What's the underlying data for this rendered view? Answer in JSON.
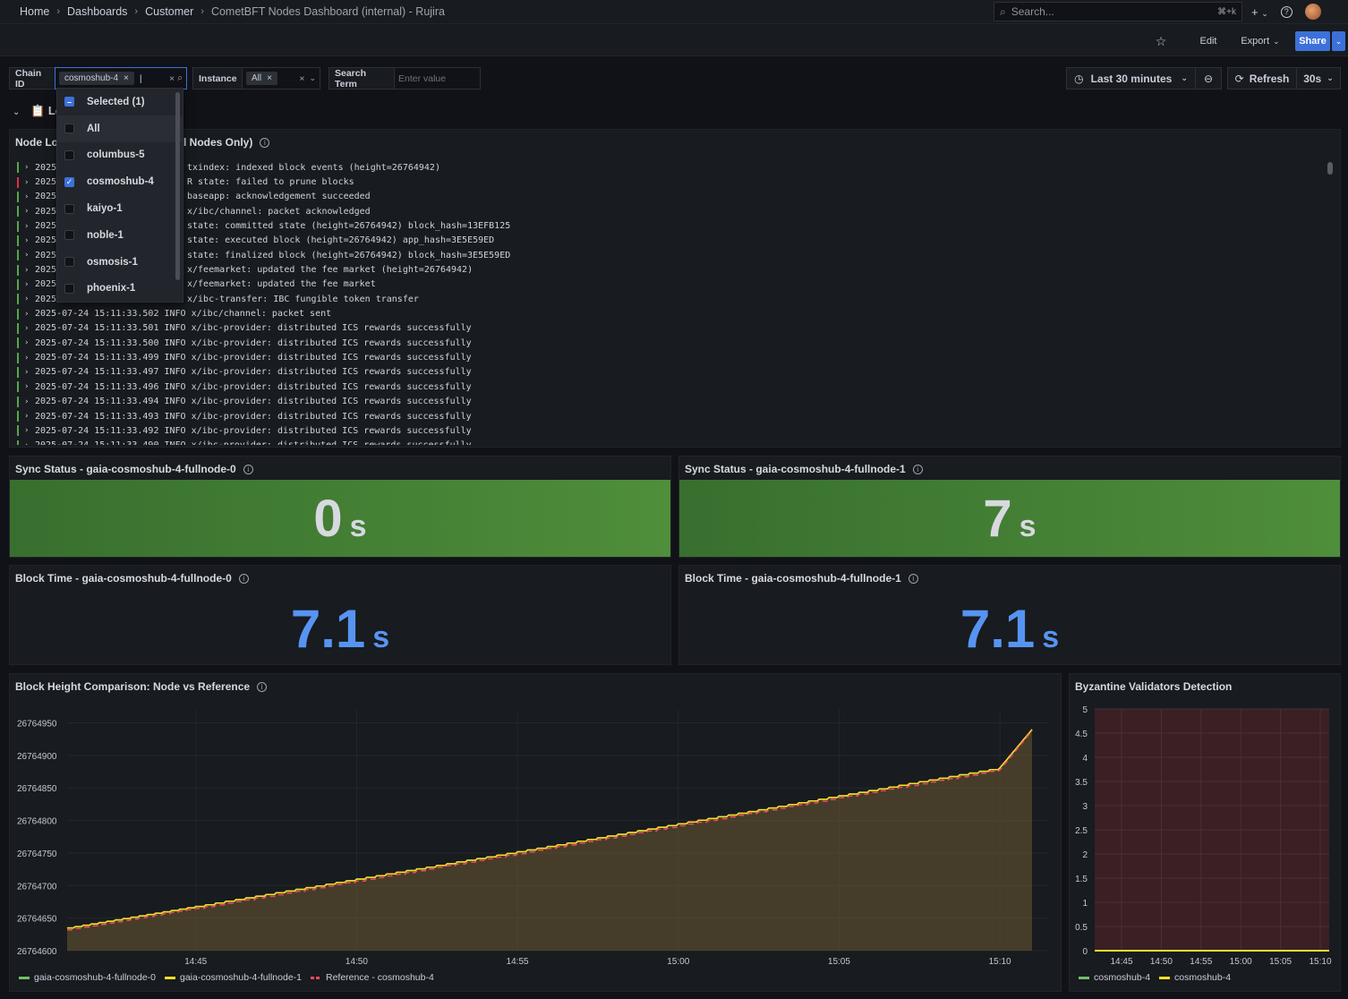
{
  "breadcrumbs": [
    "Home",
    "Dashboards",
    "Customer",
    "CometBFT Nodes Dashboard (internal) - Rujira"
  ],
  "top": {
    "search_placeholder": "Search...",
    "search_shortcut": "⌘+k",
    "new_label": "+",
    "help_label": "?"
  },
  "toolbar": {
    "edit": "Edit",
    "export": "Export",
    "share": "Share"
  },
  "variables": {
    "chain_id_label": "Chain ID",
    "chain_id_value": "cosmoshub-4",
    "instance_label": "Instance",
    "instance_value": "All",
    "search_term_label": "Search Term",
    "search_term_placeholder": "Enter value"
  },
  "time": {
    "range": "Last 30 minutes",
    "refresh": "Refresh",
    "interval": "30s"
  },
  "row": {
    "title_partial": "Lo"
  },
  "dropdown": {
    "items": [
      {
        "label": "Selected (1)",
        "state": "partial"
      },
      {
        "label": "All",
        "state": "off"
      },
      {
        "label": "columbus-5",
        "state": "off"
      },
      {
        "label": "cosmoshub-4",
        "state": "on"
      },
      {
        "label": "kaiyo-1",
        "state": "off"
      },
      {
        "label": "noble-1",
        "state": "off"
      },
      {
        "label": "osmosis-1",
        "state": "off"
      },
      {
        "label": "phoenix-1",
        "state": "off"
      }
    ]
  },
  "logs_panel": {
    "title_left": "Node Log",
    "title_right": "al Nodes Only)",
    "rows": [
      {
        "level": "info",
        "prefix": "2025-",
        "msg": "txindex: indexed block events (height=26764942)"
      },
      {
        "level": "error",
        "prefix": "2025-",
        "msg": "R state: failed to prune blocks"
      },
      {
        "level": "info",
        "prefix": "2025-",
        "msg": "baseapp: acknowledgement succeeded"
      },
      {
        "level": "info",
        "prefix": "2025-",
        "msg": "x/ibc/channel: packet acknowledged"
      },
      {
        "level": "info",
        "prefix": "2025-",
        "msg": "state: committed state (height=26764942) block_hash=13EFB125"
      },
      {
        "level": "info",
        "prefix": "2025-",
        "msg": "state: executed block (height=26764942) app_hash=3E5E59ED"
      },
      {
        "level": "info",
        "prefix": "2025-",
        "msg": "state: finalized block (height=26764942) block_hash=3E5E59ED"
      },
      {
        "level": "info",
        "prefix": "2025-",
        "msg": "x/feemarket: updated the fee market (height=26764942)"
      },
      {
        "level": "info",
        "prefix": "2025-",
        "msg": "x/feemarket: updated the fee market"
      },
      {
        "level": "info",
        "prefix": "2025-",
        "msg": "x/ibc-transfer: IBC fungible token transfer"
      },
      {
        "level": "info",
        "prefix": "2025-07-24 15:11:33.502 INFO ",
        "msg": "x/ibc/channel: packet sent"
      },
      {
        "level": "info",
        "prefix": "2025-07-24 15:11:33.501 INFO ",
        "msg": "x/ibc-provider: distributed ICS rewards successfully"
      },
      {
        "level": "info",
        "prefix": "2025-07-24 15:11:33.500 INFO ",
        "msg": "x/ibc-provider: distributed ICS rewards successfully"
      },
      {
        "level": "info",
        "prefix": "2025-07-24 15:11:33.499 INFO ",
        "msg": "x/ibc-provider: distributed ICS rewards successfully"
      },
      {
        "level": "info",
        "prefix": "2025-07-24 15:11:33.497 INFO ",
        "msg": "x/ibc-provider: distributed ICS rewards successfully"
      },
      {
        "level": "info",
        "prefix": "2025-07-24 15:11:33.496 INFO ",
        "msg": "x/ibc-provider: distributed ICS rewards successfully"
      },
      {
        "level": "info",
        "prefix": "2025-07-24 15:11:33.494 INFO ",
        "msg": "x/ibc-provider: distributed ICS rewards successfully"
      },
      {
        "level": "info",
        "prefix": "2025-07-24 15:11:33.493 INFO ",
        "msg": "x/ibc-provider: distributed ICS rewards successfully"
      },
      {
        "level": "info",
        "prefix": "2025-07-24 15:11:33.492 INFO ",
        "msg": "x/ibc-provider: distributed ICS rewards successfully"
      },
      {
        "level": "info",
        "prefix": "2025-07-24 15:11:33.490 INFO ",
        "msg": "x/ibc-provider: distributed ICS rewards successfully"
      }
    ]
  },
  "stats": {
    "sync0": {
      "title": "Sync Status - gaia-cosmoshub-4-fullnode-0",
      "value": "0",
      "unit": "s"
    },
    "sync1": {
      "title": "Sync Status - gaia-cosmoshub-4-fullnode-1",
      "value": "7",
      "unit": "s"
    },
    "block0": {
      "title": "Block Time - gaia-cosmoshub-4-fullnode-0",
      "value": "7.1",
      "unit": "s"
    },
    "block1": {
      "title": "Block Time - gaia-cosmoshub-4-fullnode-1",
      "value": "7.1",
      "unit": "s"
    }
  },
  "colors": {
    "green_series": "#73bf69",
    "yellow_series": "#fade2a",
    "red_series": "#f2495c",
    "stat_blue": "#5794f2",
    "stat_text": "#d8d9e0"
  },
  "chart_data": [
    {
      "type": "area",
      "title": "Block Height Comparison: Node vs Reference",
      "x": [
        "14:41",
        "14:45",
        "14:50",
        "14:55",
        "15:00",
        "15:05",
        "15:10",
        "15:11"
      ],
      "x_ticks": [
        "14:45",
        "14:50",
        "14:55",
        "15:00",
        "15:05",
        "15:10"
      ],
      "y_ticks": [
        "26764600",
        "26764650",
        "26764700",
        "26764750",
        "26764800",
        "26764850",
        "26764900",
        "26764950"
      ],
      "ylim": [
        26764600,
        26764970
      ],
      "series": [
        {
          "name": "gaia-cosmoshub-4-fullnode-0",
          "color": "#73bf69",
          "values": [
            26764635,
            26764668,
            26764710,
            26764752,
            26764795,
            26764838,
            26764881,
            26764940
          ]
        },
        {
          "name": "gaia-cosmoshub-4-fullnode-1",
          "color": "#fade2a",
          "values": [
            26764635,
            26764668,
            26764710,
            26764752,
            26764795,
            26764838,
            26764881,
            26764940
          ]
        },
        {
          "name": "Reference - cosmoshub-4",
          "color": "#f2495c",
          "values": [
            26764632,
            26764665,
            26764707,
            26764749,
            26764792,
            26764835,
            26764878,
            26764938
          ]
        }
      ]
    },
    {
      "type": "line",
      "title": "Byzantine Validators Detection",
      "x_ticks": [
        "14:45",
        "14:50",
        "14:55",
        "15:00",
        "15:05",
        "15:10"
      ],
      "y_ticks": [
        "0",
        "0.5",
        "1",
        "1.5",
        "2",
        "2.5",
        "3",
        "3.5",
        "4",
        "4.5",
        "5"
      ],
      "ylim": [
        0,
        5
      ],
      "series": [
        {
          "name": "cosmoshub-4",
          "color": "#73bf69",
          "values": [
            0,
            0,
            0,
            0,
            0,
            0,
            0
          ]
        },
        {
          "name": "cosmoshub-4",
          "color": "#fade2a",
          "values": [
            0,
            0,
            0,
            0,
            0,
            0,
            0
          ]
        }
      ]
    }
  ]
}
